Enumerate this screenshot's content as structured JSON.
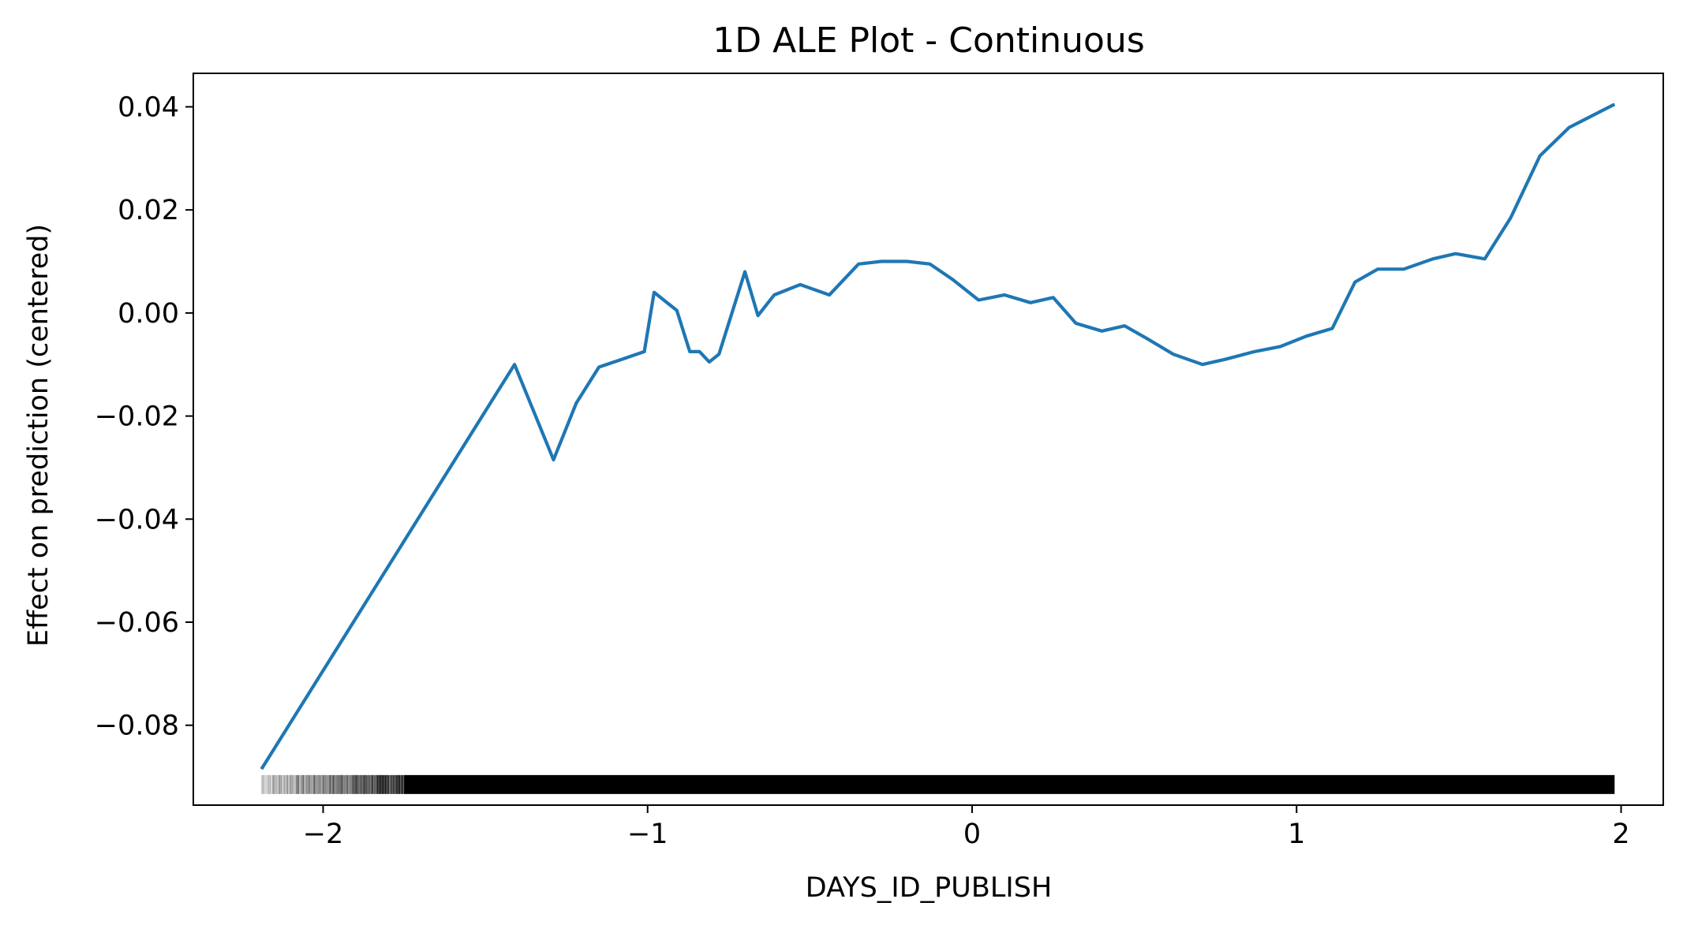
{
  "chart_data": {
    "type": "line",
    "title": "1D ALE Plot - Continuous",
    "xlabel": "DAYS_ID_PUBLISH",
    "ylabel": "Effect on prediction (centered)",
    "xlim": [
      -2.4,
      2.13
    ],
    "ylim": [
      -0.0955,
      0.0465
    ],
    "xticks": [
      -2,
      -1,
      0,
      1,
      2
    ],
    "xtick_labels": [
      "−2",
      "−1",
      "0",
      "1",
      "2"
    ],
    "yticks": [
      0.04,
      0.02,
      0.0,
      -0.02,
      -0.04,
      -0.06,
      -0.08
    ],
    "ytick_labels": [
      "0.04",
      "0.02",
      "0.00",
      "−0.02",
      "−0.04",
      "−0.06",
      "−0.08"
    ],
    "grid": false,
    "line_color": "#1f77b4",
    "rug_color": "#000000",
    "series": [
      {
        "x": [
          -2.19,
          -1.41,
          -1.29,
          -1.22,
          -1.15,
          -1.08,
          -1.01,
          -0.98,
          -0.94,
          -0.91,
          -0.87,
          -0.84,
          -0.81,
          -0.78,
          -0.7,
          -0.66,
          -0.61,
          -0.53,
          -0.44,
          -0.35,
          -0.28,
          -0.2,
          -0.13,
          -0.06,
          0.02,
          0.1,
          0.18,
          0.25,
          0.32,
          0.4,
          0.47,
          0.54,
          0.62,
          0.71,
          0.78,
          0.87,
          0.95,
          1.03,
          1.11,
          1.18,
          1.25,
          1.33,
          1.42,
          1.49,
          1.58,
          1.66,
          1.75,
          1.84,
          1.98
        ],
        "y": [
          -0.0885,
          -0.01,
          -0.0285,
          -0.0175,
          -0.0105,
          -0.009,
          -0.0075,
          0.004,
          0.002,
          0.0005,
          -0.0075,
          -0.0075,
          -0.0095,
          -0.008,
          0.008,
          -0.0005,
          0.0035,
          0.0055,
          0.0035,
          0.0095,
          0.01,
          0.01,
          0.0095,
          0.0065,
          0.0025,
          0.0035,
          0.002,
          0.003,
          -0.002,
          -0.0035,
          -0.0025,
          -0.005,
          -0.008,
          -0.01,
          -0.009,
          -0.0075,
          -0.0065,
          -0.0045,
          -0.003,
          0.006,
          0.0085,
          0.0085,
          0.0105,
          0.0115,
          0.0105,
          0.0185,
          0.0305,
          0.036,
          0.0405
        ]
      }
    ],
    "rug": {
      "y": -0.0915,
      "x_start": -2.19,
      "x_end": 1.98,
      "sparse_until": -1.75
    }
  }
}
